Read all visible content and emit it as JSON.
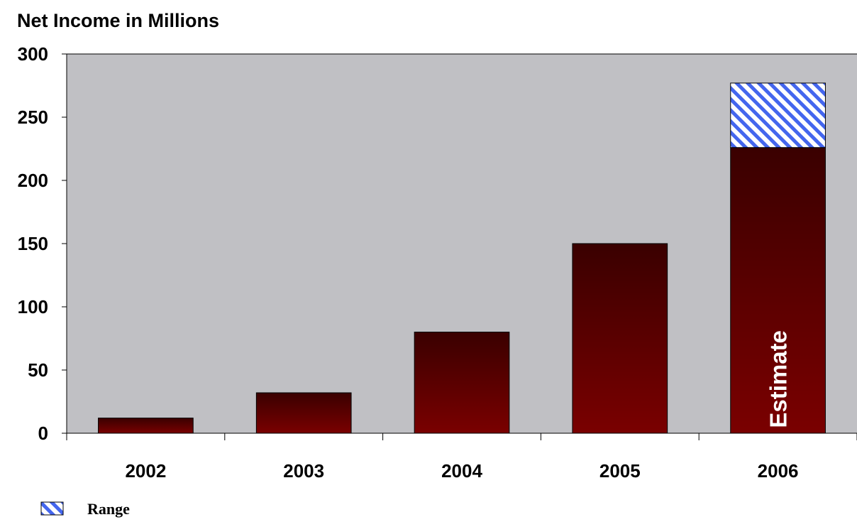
{
  "chart_data": {
    "type": "bar",
    "title": "Net Income in Millions",
    "xlabel": "",
    "ylabel": "",
    "categories": [
      "2002",
      "2003",
      "2004",
      "2005",
      "2006"
    ],
    "series": [
      {
        "values": [
          12,
          32,
          80,
          150,
          226
        ],
        "color": "#7a0000"
      },
      {
        "name": "Range",
        "stacked_on_first": true,
        "values": [
          0,
          0,
          0,
          0,
          51
        ],
        "color": "#4466ee",
        "pattern": "diagonal-hatch"
      }
    ],
    "ylim": [
      0,
      300
    ],
    "yticks": [
      0,
      50,
      100,
      150,
      200,
      250,
      300
    ],
    "annotations": [
      {
        "category": "2006",
        "text": "Estimate",
        "orientation": "vertical"
      }
    ],
    "legend": {
      "placement": "bottom-left",
      "entries": [
        "Range"
      ]
    },
    "plot_background": "#c0c0c4",
    "grid": false
  }
}
